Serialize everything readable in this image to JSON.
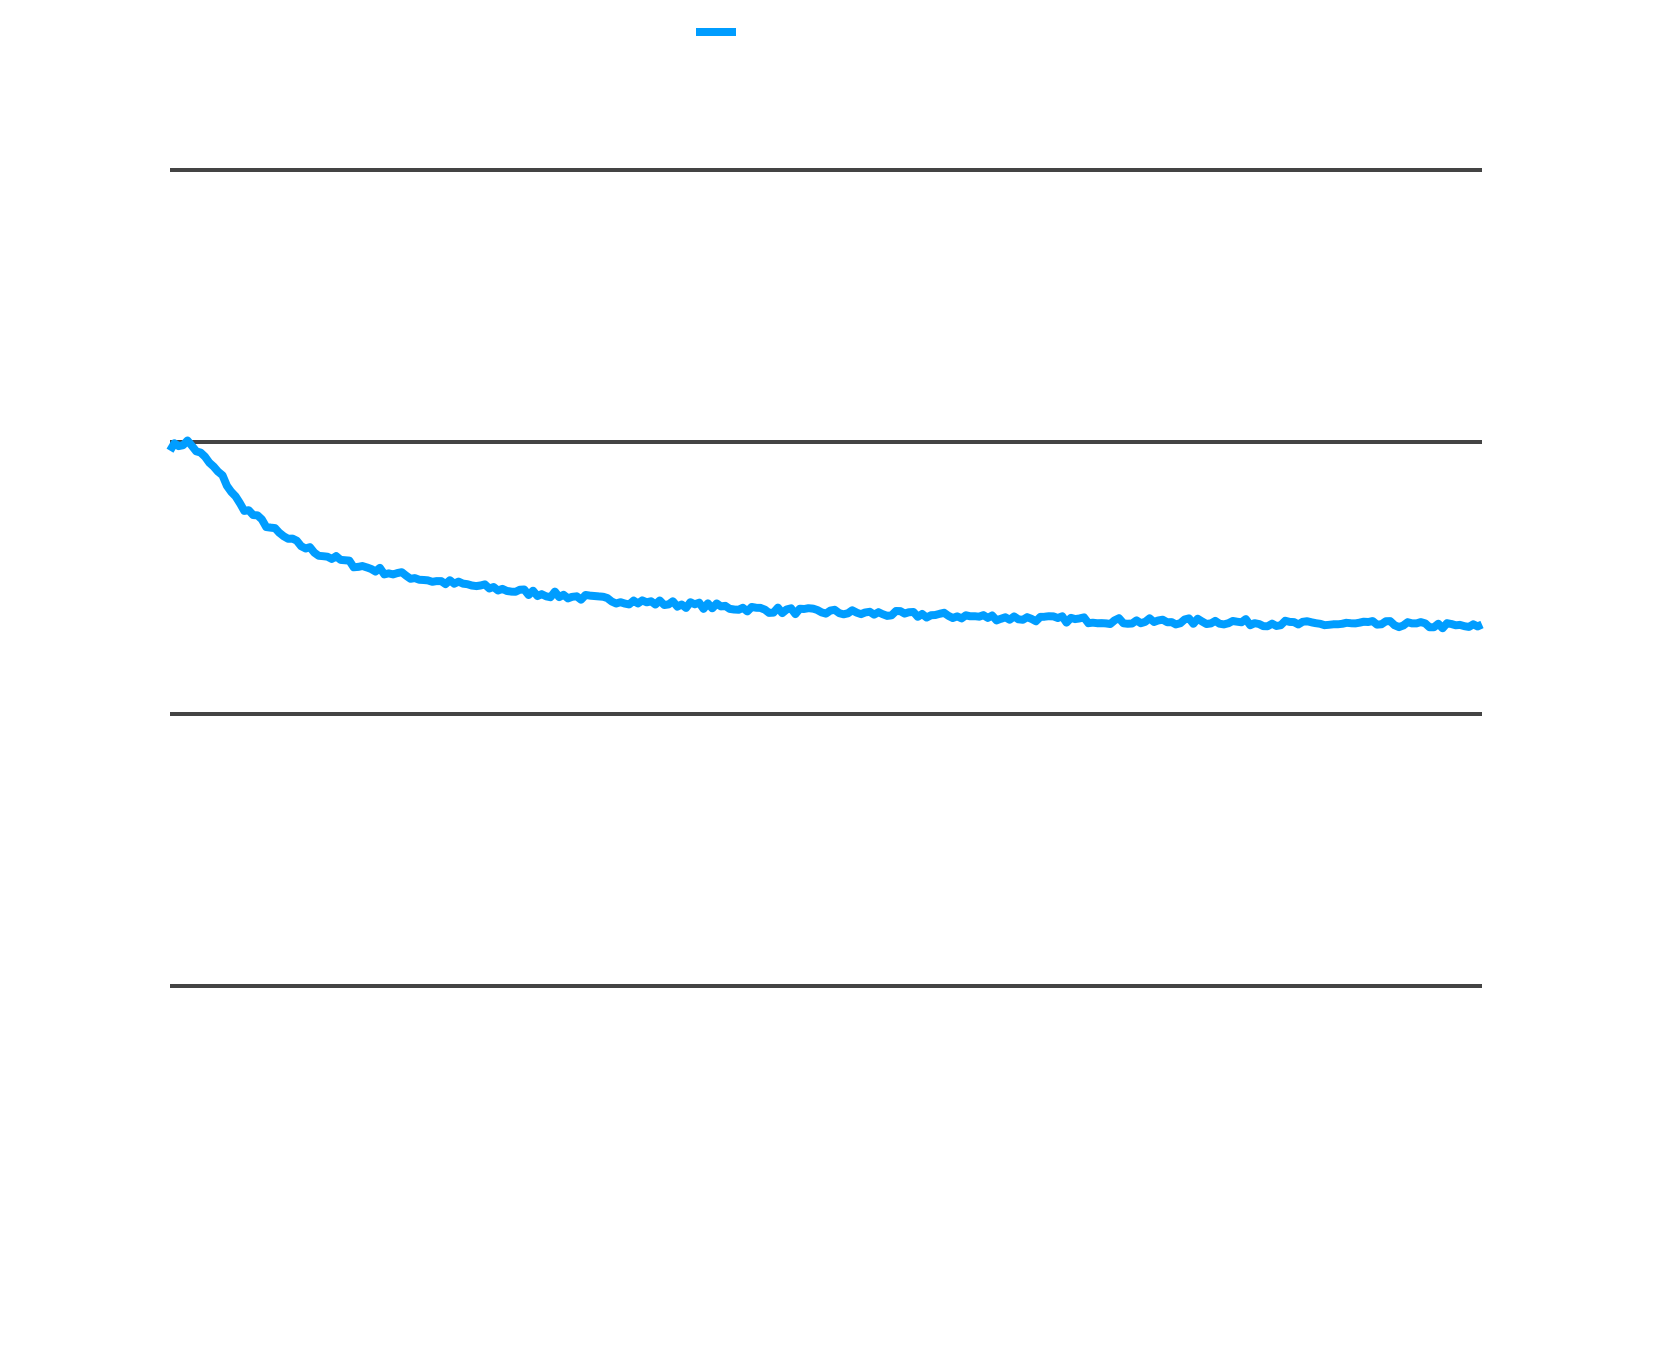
{
  "chart_data": {
    "type": "line",
    "title": "",
    "xlabel": "",
    "ylabel": "",
    "legend": {
      "placement": "top-center",
      "entries": [
        {
          "name": "",
          "color": "#009DFF"
        }
      ]
    },
    "grid": "horizontal",
    "xlim": [
      0,
      300
    ],
    "ylim": [
      -1.5,
      1.5
    ],
    "yticks": [
      -1.5,
      -0.5,
      0.5,
      1.5
    ],
    "colors": {
      "series": "#009DFF",
      "grid": "#444444",
      "background": "#FFFFFF"
    },
    "series": [
      {
        "name": "",
        "anchors": [
          [
            0,
            0.48
          ],
          [
            4,
            0.5
          ],
          [
            8,
            0.44
          ],
          [
            12,
            0.37
          ],
          [
            16,
            0.27
          ],
          [
            20,
            0.22
          ],
          [
            26,
            0.15
          ],
          [
            34,
            0.09
          ],
          [
            42,
            0.05
          ],
          [
            50,
            0.02
          ],
          [
            60,
            -0.01
          ],
          [
            70,
            -0.03
          ],
          [
            80,
            -0.05
          ],
          [
            100,
            -0.08
          ],
          [
            120,
            -0.1
          ],
          [
            140,
            -0.12
          ],
          [
            160,
            -0.13
          ],
          [
            180,
            -0.14
          ],
          [
            200,
            -0.15
          ],
          [
            220,
            -0.16
          ],
          [
            240,
            -0.16
          ],
          [
            260,
            -0.17
          ],
          [
            280,
            -0.17
          ],
          [
            300,
            -0.18
          ]
        ],
        "points": 301,
        "noise": 0.012
      }
    ]
  }
}
